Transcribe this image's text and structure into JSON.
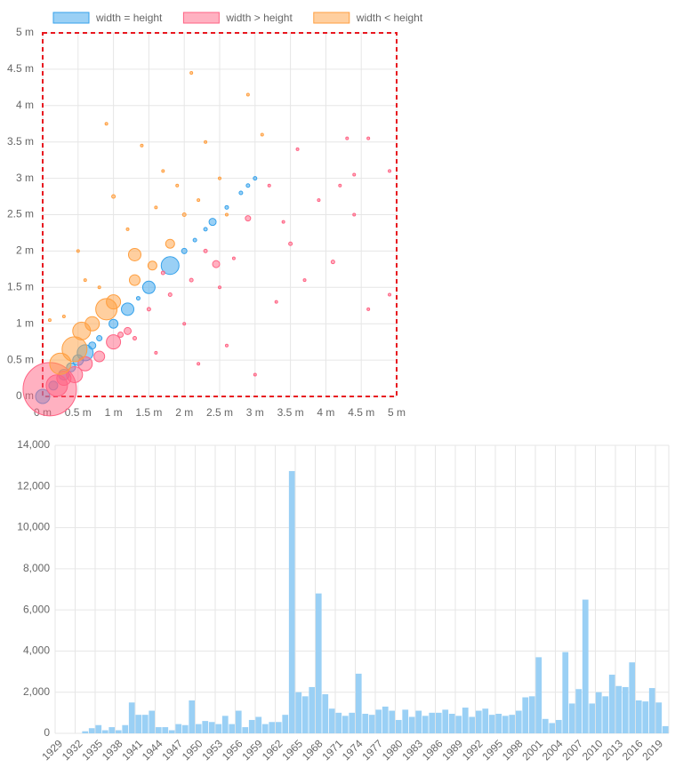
{
  "chart_data": [
    {
      "type": "bubble",
      "legend": "top",
      "xlim": [
        0,
        5
      ],
      "ylim": [
        0,
        5
      ],
      "xticks": [
        {
          "value": 0,
          "label": "0 m"
        },
        {
          "value": 0.5,
          "label": "0.5 m"
        },
        {
          "value": 1,
          "label": "1 m"
        },
        {
          "value": 1.5,
          "label": "1.5 m"
        },
        {
          "value": 2,
          "label": "2 m"
        },
        {
          "value": 2.5,
          "label": "2.5 m"
        },
        {
          "value": 3,
          "label": "3 m"
        },
        {
          "value": 3.5,
          "label": "3.5 m"
        },
        {
          "value": 4,
          "label": "4 m"
        },
        {
          "value": 4.5,
          "label": "4.5 m"
        },
        {
          "value": 5,
          "label": "5 m"
        }
      ],
      "yticks": [
        {
          "value": 0,
          "label": "0 m"
        },
        {
          "value": 0.5,
          "label": "0.5 m"
        },
        {
          "value": 1,
          "label": "1 m"
        },
        {
          "value": 1.5,
          "label": "1.5 m"
        },
        {
          "value": 2,
          "label": "2 m"
        },
        {
          "value": 2.5,
          "label": "2.5 m"
        },
        {
          "value": 3,
          "label": "3 m"
        },
        {
          "value": 3.5,
          "label": "3.5 m"
        },
        {
          "value": 4,
          "label": "4 m"
        },
        {
          "value": 4.5,
          "label": "4.5 m"
        },
        {
          "value": 5,
          "label": "5 m"
        }
      ],
      "series": [
        {
          "name": "width = height",
          "color": "#36a2eb",
          "x": [
            0,
            0.15,
            0.3,
            0.4,
            0.5,
            0.6,
            0.7,
            0.8,
            1,
            1.2,
            1.35,
            1.5,
            1.8,
            2,
            2.15,
            2.3,
            2.4,
            2.6,
            2.8,
            2.9,
            3
          ],
          "values": [
            0,
            0.15,
            0.3,
            0.4,
            0.5,
            0.6,
            0.7,
            0.8,
            1,
            1.2,
            1.35,
            1.5,
            1.8,
            2,
            2.15,
            2.3,
            2.4,
            2.6,
            2.8,
            2.9,
            3
          ],
          "sizes": [
            8,
            5,
            6,
            5,
            6,
            9,
            4,
            3,
            5,
            7,
            2,
            7,
            10,
            3,
            2,
            2,
            4,
            2,
            2,
            2,
            2
          ]
        },
        {
          "name": "width > height",
          "color": "#ff6384",
          "x": [
            0.1,
            0.2,
            0.3,
            0.45,
            0.6,
            0.8,
            1,
            1.2,
            1.3,
            1.5,
            1.6,
            1.8,
            2,
            2.1,
            2.2,
            2.45,
            2.6,
            2.7,
            2.9,
            3,
            3.2,
            3.3,
            3.5,
            3.6,
            3.7,
            3.9,
            4.1,
            4.2,
            4.3,
            4.4,
            4.4,
            4.6,
            4.6,
            4.9,
            4.9,
            1.1,
            1.7,
            2.3,
            2.5,
            3.4
          ],
          "values": [
            0.1,
            0.15,
            0.25,
            0.3,
            0.45,
            0.55,
            0.75,
            0.9,
            0.8,
            1.2,
            0.6,
            1.4,
            1,
            1.6,
            0.45,
            1.82,
            0.7,
            1.9,
            2.45,
            0.3,
            2.9,
            1.3,
            2.1,
            3.4,
            1.6,
            2.7,
            1.85,
            2.9,
            3.55,
            3.05,
            2.5,
            3.55,
            1.2,
            3.1,
            1.4,
            0.85,
            1.7,
            2.0,
            1.5,
            2.4
          ],
          "sizes": [
            30,
            12,
            8,
            9,
            8,
            6,
            8,
            4,
            2,
            2,
            1.5,
            2,
            1.5,
            2,
            1.5,
            4,
            1.5,
            1.5,
            3,
            1.5,
            1.5,
            1.5,
            2,
            1.5,
            1.5,
            1.5,
            2,
            1.5,
            1.5,
            1.5,
            1.5,
            1.5,
            1.5,
            1.5,
            1.5,
            3,
            2,
            2,
            1.5,
            1.5
          ]
        },
        {
          "name": "width < height",
          "color": "#ff9f40",
          "x": [
            0.25,
            0.45,
            0.55,
            0.7,
            0.9,
            1,
            1.3,
            1.3,
            1.55,
            1.8,
            1,
            0.9,
            2.1,
            2.9,
            3.1,
            1.4,
            0.5,
            0.1,
            2.3,
            2,
            1.6,
            0.8,
            1.2,
            2.5,
            0.6,
            1.7,
            2.6,
            0.3,
            1.9,
            2.2
          ],
          "values": [
            0.45,
            0.65,
            0.9,
            1,
            1.2,
            1.3,
            1.6,
            1.95,
            1.8,
            2.1,
            2.75,
            3.75,
            4.45,
            4.15,
            3.6,
            3.45,
            2,
            1.05,
            3.5,
            2.5,
            2.6,
            1.5,
            2.3,
            3,
            1.6,
            3.1,
            2.5,
            1.1,
            2.9,
            2.7
          ],
          "sizes": [
            12,
            14,
            10,
            8,
            12,
            8,
            6,
            7,
            5,
            5,
            2,
            1.5,
            1.5,
            1.5,
            1.5,
            1.5,
            1.5,
            1.5,
            1.5,
            2,
            1.5,
            1.5,
            1.5,
            1.5,
            1.5,
            1.5,
            1.5,
            1.5,
            1.5,
            1.5
          ]
        }
      ]
    },
    {
      "type": "bar",
      "color": "#9ad0f5",
      "ylim": [
        0,
        14000
      ],
      "yticks": [
        0,
        {
          "value": 2000,
          "label": "2,000"
        },
        {
          "value": 4000,
          "label": "4,000"
        },
        {
          "value": 6000,
          "label": "6,000"
        },
        {
          "value": 8000,
          "label": "8,000"
        },
        {
          "value": 10000,
          "label": "10,000"
        },
        {
          "value": 12000,
          "label": "12,000"
        },
        {
          "value": 14000,
          "label": "14,000"
        }
      ],
      "categories": [
        "1929",
        null,
        null,
        "1932",
        null,
        null,
        "1935",
        null,
        null,
        "1938",
        null,
        null,
        "1941",
        null,
        null,
        "1944",
        null,
        null,
        "1947",
        null,
        null,
        "1950",
        null,
        null,
        "1953",
        null,
        null,
        "1956",
        null,
        null,
        "1959",
        null,
        null,
        "1962",
        null,
        null,
        "1965",
        null,
        null,
        "1968",
        null,
        null,
        "1971",
        null,
        null,
        "1974",
        null,
        null,
        "1977",
        null,
        null,
        "1980",
        null,
        null,
        "1983",
        null,
        null,
        "1986",
        null,
        null,
        "1989",
        null,
        null,
        "1992",
        null,
        null,
        "1995",
        null,
        null,
        "1998",
        null,
        null,
        "2001",
        null,
        null,
        "2004",
        null,
        null,
        "2007",
        null,
        null,
        "2010",
        null,
        null,
        "2013",
        null,
        null,
        "2016",
        null,
        null,
        "2019",
        null
      ],
      "values": [
        0,
        0,
        0,
        0,
        100,
        250,
        400,
        150,
        300,
        150,
        400,
        1500,
        900,
        900,
        1100,
        300,
        300,
        150,
        450,
        400,
        1600,
        450,
        600,
        550,
        450,
        850,
        450,
        1100,
        300,
        650,
        800,
        450,
        550,
        550,
        900,
        12750,
        2000,
        1800,
        2250,
        6800,
        1900,
        1200,
        1000,
        850,
        1000,
        2900,
        950,
        900,
        1150,
        1300,
        1100,
        650,
        1150,
        800,
        1100,
        850,
        1000,
        1000,
        1150,
        950,
        850,
        1250,
        800,
        1100,
        1200,
        900,
        950,
        850,
        900,
        1100,
        1750,
        1800,
        3700,
        700,
        500,
        650,
        3950,
        1450,
        2150,
        6500,
        1450,
        2000,
        1800,
        2850,
        2300,
        2250,
        3450,
        1600,
        1550,
        2200,
        1500,
        350
      ]
    }
  ]
}
